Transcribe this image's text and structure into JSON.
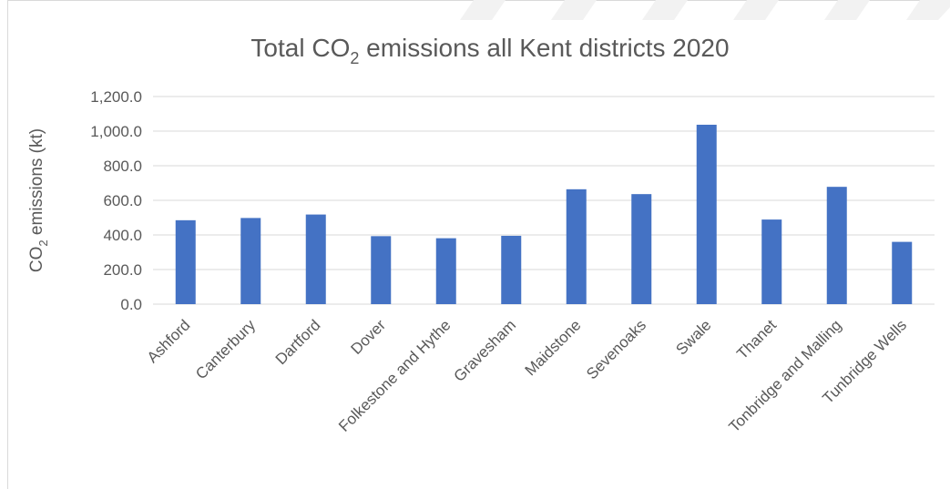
{
  "chart_data": {
    "type": "bar",
    "title_main": "Total CO",
    "title_sub": "2",
    "title_rest": " emissions all Kent districts 2020",
    "ylabel_main": "CO",
    "ylabel_sub": "2",
    "ylabel_rest": " emissions (kt)",
    "xlabel": "",
    "ylim": [
      0,
      1200
    ],
    "ytick_values": [
      0,
      200,
      400,
      600,
      800,
      1000,
      1200
    ],
    "ytick_labels": [
      "0.0",
      "200.0",
      "400.0",
      "600.0",
      "800.0",
      "1,000.0",
      "1,200.0"
    ],
    "categories": [
      "Ashford",
      "Canterbury",
      "Dartford",
      "Dover",
      "Folkestone and Hythe",
      "Gravesham",
      "Maidstone",
      "Sevenoaks",
      "Swale",
      "Thanet",
      "Tonbridge and Malling",
      "Tunbridge Wells"
    ],
    "values": [
      485,
      498,
      518,
      393,
      381,
      395,
      664,
      636,
      1037,
      489,
      678,
      360
    ],
    "bar_color": "#4472c4",
    "grid": true,
    "legend": "none"
  }
}
